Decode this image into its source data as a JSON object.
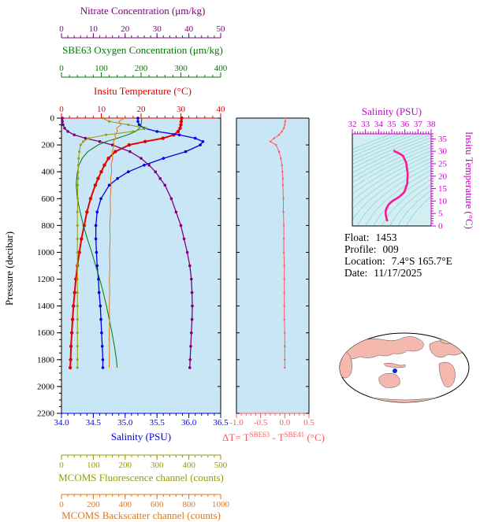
{
  "figure": {
    "info": {
      "float": {
        "label": "Float:",
        "value": "1453"
      },
      "profile": {
        "label": "Profile:",
        "value": "009"
      },
      "location": {
        "label": "Location:",
        "value": "7.4°S  165.7°E"
      },
      "date": {
        "label": "Date:",
        "value": "11/17/2025"
      }
    },
    "map": {
      "ocean_color": "#ffffff",
      "land_color": "#f4b8ae",
      "marker_color": "#0033cc",
      "outline_color": "#000000"
    }
  },
  "chart_data": [
    {
      "id": "main-profile",
      "type": "line",
      "ylabel": "Pressure (decibar)",
      "ylim": [
        0,
        2200
      ],
      "ytick_values": [
        0,
        200,
        400,
        600,
        800,
        1000,
        1200,
        1400,
        1600,
        1800,
        2000,
        2200
      ],
      "ytick_labels": [
        "0",
        "200",
        "400",
        "600",
        "800",
        "1000",
        "1200",
        "1400",
        "1600",
        "1800",
        "2000",
        "2200"
      ],
      "y_minor": 50,
      "plot_bg": "#c8e6f5",
      "pressure": [
        0,
        25,
        50,
        75,
        100,
        125,
        150,
        175,
        200,
        250,
        300,
        350,
        400,
        450,
        500,
        600,
        700,
        800,
        900,
        1000,
        1100,
        1200,
        1300,
        1400,
        1500,
        1600,
        1700,
        1800,
        1860
      ],
      "x_axes": [
        {
          "id": "nitrate",
          "label": "Nitrate Concentration (μm/kg)",
          "color": "#800080",
          "min": 0,
          "max": 50,
          "tick_values": [
            0,
            10,
            20,
            30,
            40,
            50
          ],
          "tick_labels": [
            "0",
            "10",
            "20",
            "30",
            "40",
            "50"
          ],
          "minor": 2
        },
        {
          "id": "oxygen",
          "label": "SBE63 Oxygen Concentration (μm/kg)",
          "color": "#007a00",
          "min": 0,
          "max": 400,
          "tick_values": [
            0,
            100,
            200,
            300,
            400
          ],
          "tick_labels": [
            "0",
            "100",
            "200",
            "300",
            "400"
          ],
          "minor": 20
        },
        {
          "id": "temperature",
          "label": "Insitu Temperature (°C)",
          "color": "#e60000",
          "min": 0,
          "max": 40,
          "tick_values": [
            0,
            10,
            20,
            30,
            40
          ],
          "tick_labels": [
            "0",
            "10",
            "20",
            "30",
            "40"
          ],
          "minor": 2
        },
        {
          "id": "salinity",
          "label": "Salinity (PSU)",
          "color": "#0000e6",
          "min": 34.0,
          "max": 36.5,
          "tick_values": [
            34.0,
            34.5,
            35.0,
            35.5,
            36.0,
            36.5
          ],
          "tick_labels": [
            "34.0",
            "34.5",
            "35.0",
            "35.5",
            "36.0",
            "36.5"
          ],
          "minor": 0.1
        },
        {
          "id": "fluorescence",
          "label": "MCOMS Fluorescence channel (counts)",
          "color": "#9a9a00",
          "min": 0,
          "max": 500,
          "tick_values": [
            0,
            100,
            200,
            300,
            400,
            500
          ],
          "tick_labels": [
            "0",
            "100",
            "200",
            "300",
            "400",
            "500"
          ],
          "minor": 20
        },
        {
          "id": "backscatter",
          "label": "MCOMS Backscatter channel (counts)",
          "color": "#e07818",
          "min": 0,
          "max": 1000,
          "tick_values": [
            0,
            200,
            400,
            600,
            800,
            1000
          ],
          "tick_labels": [
            "0",
            "200",
            "400",
            "600",
            "800",
            "1000"
          ],
          "minor": 40
        }
      ],
      "series": [
        {
          "name": "Insitu Temperature",
          "axis": "temperature",
          "color": "#e60000",
          "width": 2,
          "marker": true,
          "marker_size": 2.2,
          "values": [
            30.2,
            30.1,
            30.0,
            29.8,
            29.3,
            28.2,
            25.5,
            21.0,
            17.0,
            13.5,
            11.8,
            10.8,
            10.0,
            9.2,
            8.5,
            7.3,
            6.4,
            5.7,
            5.0,
            4.5,
            4.0,
            3.6,
            3.3,
            3.0,
            2.8,
            2.6,
            2.4,
            2.3,
            2.2
          ]
        },
        {
          "name": "Salinity",
          "axis": "salinity",
          "color": "#0000e6",
          "width": 1.3,
          "marker": true,
          "marker_size": 1.8,
          "values": [
            35.2,
            35.2,
            35.22,
            35.3,
            35.5,
            35.85,
            36.1,
            36.22,
            36.18,
            35.95,
            35.6,
            35.3,
            35.05,
            34.88,
            34.75,
            34.62,
            34.56,
            34.54,
            34.54,
            34.55,
            34.56,
            34.58,
            34.59,
            34.61,
            34.62,
            34.63,
            34.64,
            34.65,
            34.65
          ]
        },
        {
          "name": "Nitrate Concentration",
          "axis": "nitrate",
          "color": "#800080",
          "width": 1.3,
          "marker": true,
          "marker_size": 1.8,
          "values": [
            0.3,
            0.3,
            0.5,
            1.0,
            2.0,
            4.0,
            7.5,
            12.0,
            16.0,
            21.5,
            25.0,
            27.5,
            29.5,
            31.0,
            32.5,
            34.5,
            36.0,
            37.5,
            38.5,
            39.5,
            40.3,
            40.8,
            41.0,
            41.1,
            41.0,
            40.8,
            40.6,
            40.4,
            40.3
          ]
        },
        {
          "name": "SBE63 Oxygen Concentration",
          "axis": "oxygen",
          "color": "#007a00",
          "width": 1,
          "marker": false,
          "marker_size": 0,
          "values": [
            202,
            201,
            200,
            196,
            186,
            166,
            140,
            112,
            92,
            66,
            52,
            44,
            40,
            38,
            37,
            40,
            47,
            55,
            65,
            76,
            86,
            96,
            105,
            113,
            120,
            127,
            133,
            138,
            140
          ]
        },
        {
          "name": "MCOMS Fluorescence",
          "axis": "fluorescence",
          "color": "#9a9a00",
          "width": 1,
          "marker": true,
          "marker_size": 1.5,
          "values": [
            130,
            150,
            210,
            265,
            225,
            140,
            85,
            68,
            60,
            56,
            54,
            53,
            52,
            52,
            51,
            51,
            50,
            50,
            50,
            50,
            50,
            50,
            50,
            50,
            50,
            50,
            50,
            50,
            50
          ]
        },
        {
          "name": "MCOMS Backscatter",
          "axis": "backscatter",
          "color": "#e07818",
          "width": 1,
          "marker": false,
          "marker_size": 0,
          "values": [
            395,
            360,
            375,
            345,
            352,
            335,
            340,
            325,
            330,
            318,
            322,
            312,
            316,
            308,
            312,
            306,
            308,
            303,
            306,
            302,
            304,
            301,
            303,
            300,
            302,
            300,
            301,
            300,
            300
          ]
        }
      ]
    },
    {
      "id": "delta-temperature",
      "type": "line",
      "xlabel": "ΔT= T^SBE63 - T^SBE41 (°C)",
      "xlabel_parts": {
        "prefix": "ΔT= T",
        "sup1": "SBE63",
        "mid": " - T",
        "sup2": "SBE41",
        "suffix": " (°C)"
      },
      "color": "#ff5a5a",
      "plot_bg": "#c8e6f5",
      "xlim": [
        -1.0,
        0.5
      ],
      "xtick_values": [
        -1.0,
        -0.5,
        0.0,
        0.5
      ],
      "xtick_labels": [
        "-1.0",
        "-0.5",
        "0.0",
        "0.5"
      ],
      "minor": 0.1,
      "pressure": [
        0,
        25,
        50,
        75,
        100,
        125,
        150,
        175,
        200,
        250,
        300,
        350,
        400,
        450,
        500,
        600,
        700,
        800,
        900,
        1000,
        1100,
        1200,
        1300,
        1400,
        1500,
        1600,
        1700,
        1800,
        1860
      ],
      "values": [
        0.02,
        0.01,
        0.0,
        -0.02,
        -0.06,
        -0.12,
        -0.22,
        -0.3,
        -0.18,
        -0.12,
        -0.08,
        -0.06,
        -0.05,
        -0.04,
        -0.04,
        -0.03,
        -0.03,
        -0.02,
        -0.02,
        -0.02,
        -0.01,
        -0.01,
        -0.01,
        -0.01,
        -0.01,
        0.0,
        0.0,
        0.0,
        0.0
      ]
    },
    {
      "id": "ts-diagram",
      "type": "line",
      "xlabel": "Salinity (PSU)",
      "ylabel": "Insitu Temperature (°C)",
      "axis_color": "#cc00cc",
      "curve_color": "#ff1493",
      "plot_bg": "#d2eef2",
      "contour_color": "#8ad0da",
      "xlim": [
        32,
        38
      ],
      "xtick_values": [
        32,
        33,
        34,
        35,
        36,
        37,
        38
      ],
      "xtick_labels": [
        "32",
        "33",
        "34",
        "35",
        "36",
        "37",
        "38"
      ],
      "x_minor": 0.2,
      "ylim": [
        0,
        37
      ],
      "ytick_values": [
        0,
        5,
        10,
        15,
        20,
        25,
        30,
        35
      ],
      "ytick_labels": [
        "0",
        "5",
        "10",
        "15",
        "20",
        "25",
        "30",
        "35"
      ],
      "y_minor": 1,
      "sigma_contours": {
        "min": 19,
        "max": 29,
        "step": 0.5
      },
      "points": [
        [
          35.2,
          30.2
        ],
        [
          35.2,
          30.1
        ],
        [
          35.22,
          30.0
        ],
        [
          35.3,
          29.8
        ],
        [
          35.5,
          29.3
        ],
        [
          35.85,
          28.2
        ],
        [
          36.1,
          25.5
        ],
        [
          36.22,
          21.0
        ],
        [
          36.18,
          17.0
        ],
        [
          35.95,
          13.5
        ],
        [
          35.6,
          11.8
        ],
        [
          35.3,
          10.8
        ],
        [
          35.05,
          10.0
        ],
        [
          34.88,
          9.2
        ],
        [
          34.75,
          8.5
        ],
        [
          34.62,
          7.3
        ],
        [
          34.56,
          6.4
        ],
        [
          34.54,
          5.7
        ],
        [
          34.54,
          5.0
        ],
        [
          34.55,
          4.5
        ],
        [
          34.56,
          4.0
        ],
        [
          34.58,
          3.6
        ],
        [
          34.59,
          3.3
        ],
        [
          34.61,
          3.0
        ],
        [
          34.62,
          2.8
        ],
        [
          34.63,
          2.6
        ],
        [
          34.64,
          2.4
        ],
        [
          34.65,
          2.3
        ],
        [
          34.65,
          2.2
        ]
      ]
    }
  ]
}
